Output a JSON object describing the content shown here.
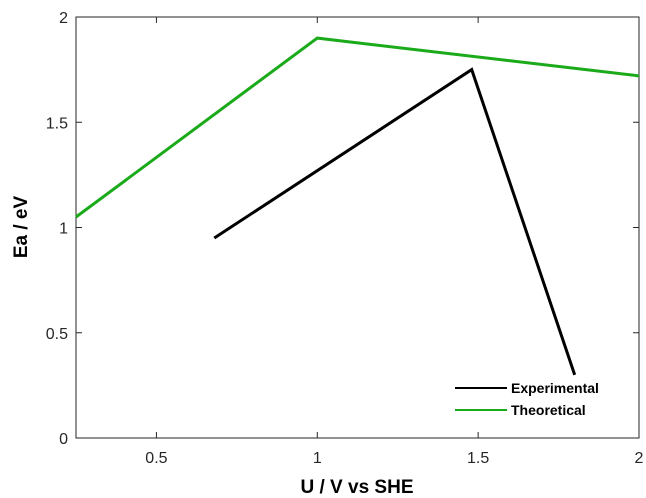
{
  "chart_data": {
    "type": "line",
    "xlabel": "U / V vs SHE",
    "ylabel": "Ea / eV",
    "xlim": [
      0.25,
      2
    ],
    "ylim": [
      0,
      2
    ],
    "x_ticks": [
      0.5,
      1,
      1.5,
      2
    ],
    "x_tick_labels": [
      "0.5",
      "1",
      "1.5",
      "2"
    ],
    "y_ticks": [
      0,
      0.5,
      1,
      1.5,
      2
    ],
    "y_tick_labels": [
      "0",
      "0.5",
      "1",
      "1.5",
      "2"
    ],
    "grid": false,
    "legend_position": "bottom-right",
    "series": [
      {
        "name": "Experimental",
        "color": "#000000",
        "x": [
          0.68,
          1.48,
          1.8
        ],
        "y": [
          0.95,
          1.75,
          0.3
        ]
      },
      {
        "name": "Theoretical",
        "color": "#1aaa1a",
        "x": [
          0.25,
          1.0,
          2.0
        ],
        "y": [
          1.05,
          1.9,
          1.72
        ]
      }
    ]
  }
}
